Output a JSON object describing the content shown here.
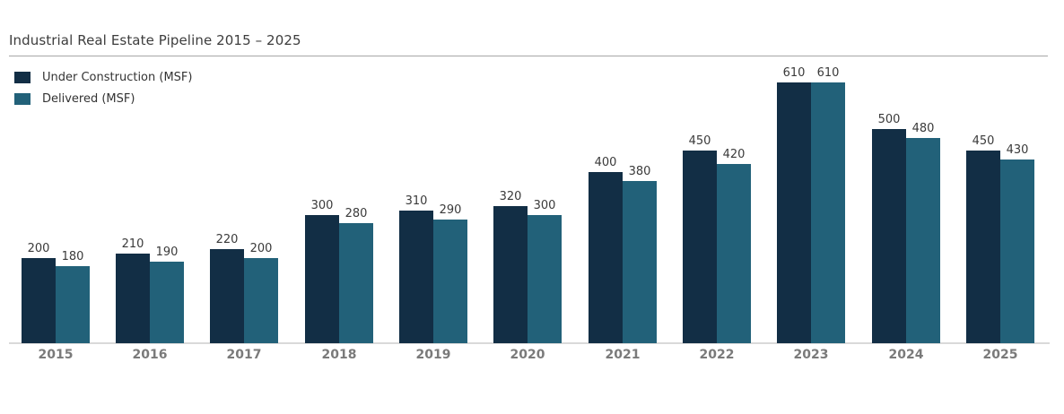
{
  "title": "Industrial Real Estate Pipeline 2015 – 2025",
  "chart_data": {
    "type": "bar",
    "title": "Industrial Real Estate Pipeline 2015 – 2025",
    "categories": [
      "2015",
      "2016",
      "2017",
      "2018",
      "2019",
      "2020",
      "2021",
      "2022",
      "2023",
      "2024",
      "2025"
    ],
    "series": [
      {
        "name": "Under Construction (MSF)",
        "color": "#122e45",
        "values": [
          200,
          210,
          220,
          300,
          310,
          320,
          400,
          450,
          610,
          500,
          450
        ]
      },
      {
        "name": "Delivered (MSF)",
        "color": "#226179",
        "values": [
          180,
          190,
          200,
          280,
          290,
          300,
          380,
          420,
          610,
          480,
          430
        ]
      }
    ],
    "xlabel": "",
    "ylabel": "",
    "ylim": [
      0,
      650
    ],
    "grid": false,
    "legend_position": "top-left",
    "value_labels": true
  },
  "colors": {
    "background": "#ffffff",
    "title_text": "#3d3d3d",
    "divider": "#a6a6a6",
    "axis_line": "#d9d9d9",
    "tick_label": "#7a7a7a",
    "value_label": "#3a3a3a",
    "legend_text": "#333333"
  }
}
